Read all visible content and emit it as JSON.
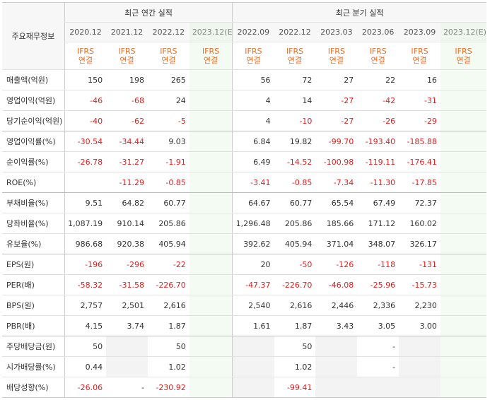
{
  "header": {
    "corner": "주요재무정보",
    "annual_group": "최근 연간 실적",
    "quarter_group": "최근 분기 실적",
    "annual_dates": [
      "2020.12",
      "2021.12",
      "2022.12",
      "2023.12(E)"
    ],
    "quarter_dates": [
      "2022.09",
      "2022.12",
      "2023.03",
      "2023.06",
      "2023.09",
      "2023.12(E)"
    ],
    "ifrs_line1": "IFRS",
    "ifrs_line2": "연결"
  },
  "rows": [
    {
      "label": "매출액(억원)",
      "values": [
        "150",
        "198",
        "265",
        "",
        "56",
        "72",
        "27",
        "22",
        "16",
        ""
      ]
    },
    {
      "label": "영업이익(억원)",
      "values": [
        "-46",
        "-68",
        "24",
        "",
        "4",
        "14",
        "-27",
        "-42",
        "-31",
        ""
      ]
    },
    {
      "label": "당기순이익(억원)",
      "values": [
        "-40",
        "-62",
        "-5",
        "",
        "4",
        "-10",
        "-27",
        "-26",
        "-29",
        ""
      ]
    },
    {
      "label": "영업이익률(%)",
      "values": [
        "-30.54",
        "-34.44",
        "9.03",
        "",
        "6.84",
        "19.82",
        "-99.70",
        "-193.40",
        "-185.88",
        ""
      ]
    },
    {
      "label": "순이익률(%)",
      "values": [
        "-26.78",
        "-31.27",
        "-1.91",
        "",
        "6.49",
        "-14.52",
        "-100.98",
        "-119.11",
        "-176.41",
        ""
      ]
    },
    {
      "label": "ROE(%)",
      "values": [
        "",
        "-11.29",
        "-0.85",
        "",
        "-3.41",
        "-0.85",
        "-7.34",
        "-11.30",
        "-17.85",
        ""
      ]
    },
    {
      "label": "부채비율(%)",
      "values": [
        "9.51",
        "64.82",
        "60.77",
        "",
        "64.67",
        "60.77",
        "65.54",
        "67.49",
        "72.37",
        ""
      ]
    },
    {
      "label": "당좌비율(%)",
      "values": [
        "1,087.19",
        "910.14",
        "205.86",
        "",
        "1,296.48",
        "205.86",
        "185.66",
        "171.12",
        "160.02",
        ""
      ]
    },
    {
      "label": "유보율(%)",
      "values": [
        "986.68",
        "920.38",
        "405.94",
        "",
        "392.62",
        "405.94",
        "371.04",
        "348.07",
        "326.17",
        ""
      ]
    },
    {
      "label": "EPS(원)",
      "values": [
        "-196",
        "-296",
        "-22",
        "",
        "20",
        "-50",
        "-126",
        "-118",
        "-131",
        ""
      ]
    },
    {
      "label": "PER(배)",
      "values": [
        "-58.32",
        "-31.58",
        "-226.70",
        "",
        "-47.37",
        "-226.70",
        "-46.08",
        "-25.96",
        "-15.73",
        ""
      ]
    },
    {
      "label": "BPS(원)",
      "values": [
        "2,757",
        "2,501",
        "2,616",
        "",
        "2,540",
        "2,616",
        "2,446",
        "2,336",
        "2,230",
        ""
      ]
    },
    {
      "label": "PBR(배)",
      "values": [
        "4.15",
        "3.74",
        "1.87",
        "",
        "1.61",
        "1.87",
        "3.43",
        "3.05",
        "3.00",
        ""
      ]
    },
    {
      "label": "주당배당금(원)",
      "values": [
        "50",
        "",
        "50",
        "",
        "",
        "50",
        "",
        "-",
        "",
        ""
      ]
    },
    {
      "label": "시가배당률(%)",
      "values": [
        "0.44",
        "",
        "1.02",
        "",
        "",
        "1.02",
        "",
        "-",
        "",
        ""
      ]
    },
    {
      "label": "배당성향(%)",
      "values": [
        "-26.06",
        "-",
        "-230.92",
        "",
        "",
        "-99.41",
        "",
        "",
        "",
        ""
      ]
    }
  ],
  "colors": {
    "negative": "#e21f1f",
    "ifrs": "#f26e22",
    "estimate_bg": "#f4fbf3",
    "header_bg": "#f7f7f7"
  }
}
